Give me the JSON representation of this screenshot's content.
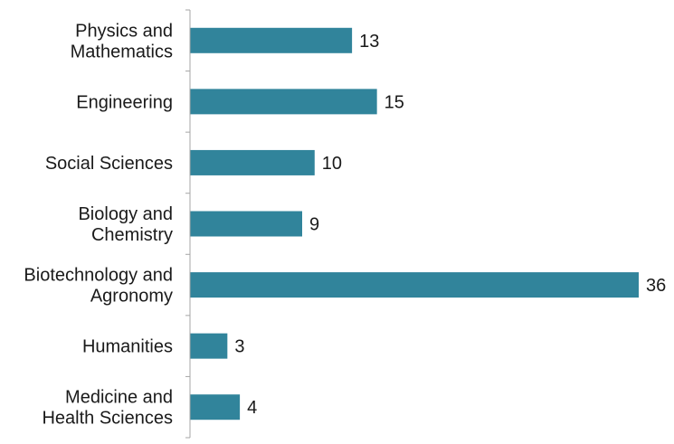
{
  "chart_data": {
    "type": "bar",
    "orientation": "horizontal",
    "categories": [
      [
        "Physics and",
        "Mathematics"
      ],
      [
        "Engineering"
      ],
      [
        "Social Sciences"
      ],
      [
        "Biology and",
        "Chemistry"
      ],
      [
        "Biotechnology and",
        "Agronomy"
      ],
      [
        "Humanities"
      ],
      [
        "Medicine and",
        "Health Sciences"
      ]
    ],
    "values": [
      13,
      15,
      10,
      9,
      36,
      3,
      4
    ],
    "title": "",
    "xlabel": "",
    "ylabel": "",
    "xlim": [
      0,
      36
    ],
    "bar_color": "#31849b",
    "grid": false,
    "legend": "none",
    "data_labels": true
  }
}
